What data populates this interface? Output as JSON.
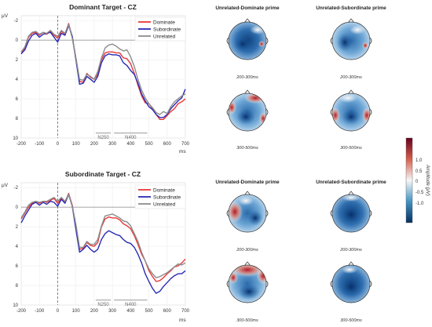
{
  "chart_data": [
    {
      "type": "line",
      "title": "Dominant Target - CZ",
      "ylabel": "μV",
      "xlabel": "ms",
      "ylim": [
        -2.5,
        10
      ],
      "y_inverted": true,
      "xlim": [
        -200,
        700
      ],
      "xticks": [
        "-200",
        "-100",
        "0",
        "100",
        "200",
        "300",
        "400",
        "500",
        "600",
        "700"
      ],
      "yticks": [
        "-2",
        "0",
        "2",
        "4",
        "6",
        "8",
        "10"
      ],
      "grid": true,
      "legend_position": "top-right",
      "x": [
        -200,
        -180,
        -160,
        -140,
        -120,
        -100,
        -80,
        -60,
        -40,
        -20,
        0,
        20,
        40,
        60,
        80,
        100,
        120,
        140,
        160,
        180,
        200,
        220,
        240,
        260,
        280,
        300,
        320,
        340,
        360,
        380,
        400,
        420,
        440,
        460,
        480,
        500,
        520,
        540,
        560,
        580,
        600,
        620,
        640,
        660,
        680,
        700
      ],
      "series": [
        {
          "name": "Dominate",
          "color": "#e8393a",
          "values": [
            1.4,
            0.8,
            -0.3,
            -0.7,
            -0.8,
            -0.5,
            -0.8,
            -0.6,
            -0.9,
            -0.5,
            -0.2,
            -0.9,
            -0.6,
            -1.7,
            -0.3,
            2.0,
            4.2,
            4.3,
            3.4,
            3.8,
            4.0,
            3.5,
            2.0,
            1.3,
            1.2,
            1.2,
            1.3,
            1.3,
            1.8,
            1.9,
            2.4,
            3.4,
            4.6,
            5.7,
            6.4,
            6.5,
            7.0,
            7.6,
            8.1,
            8.1,
            7.7,
            7.3,
            7.0,
            6.5,
            6.3,
            6.0
          ]
        },
        {
          "name": "Subordinate",
          "color": "#2b2bb5",
          "values": [
            1.4,
            1.0,
            0.1,
            -0.5,
            -0.7,
            -0.3,
            -0.6,
            -0.7,
            -0.8,
            -0.3,
            0.2,
            -0.7,
            -0.5,
            -1.5,
            -0.4,
            2.0,
            4.5,
            4.4,
            3.7,
            4.0,
            4.3,
            3.7,
            2.3,
            1.6,
            1.4,
            1.5,
            1.5,
            1.6,
            2.3,
            2.6,
            3.1,
            3.5,
            4.4,
            5.5,
            6.2,
            6.8,
            7.1,
            7.6,
            7.9,
            7.9,
            7.6,
            7.0,
            6.6,
            6.2,
            5.9,
            5.0
          ]
        },
        {
          "name": "Unrelated",
          "color": "#8c8c8c",
          "values": [
            1.2,
            0.7,
            -0.4,
            -0.8,
            -0.9,
            -0.6,
            -0.8,
            -0.7,
            -1.0,
            -0.6,
            -0.4,
            -1.0,
            -0.7,
            -1.6,
            -0.2,
            1.8,
            4.0,
            4.1,
            3.5,
            3.7,
            4.0,
            3.2,
            1.8,
            0.8,
            0.5,
            0.4,
            0.6,
            0.9,
            1.1,
            1.0,
            1.7,
            2.7,
            4.0,
            5.1,
            5.9,
            6.5,
            6.9,
            7.4,
            7.6,
            7.3,
            7.5,
            6.8,
            6.3,
            6.0,
            5.7,
            5.5
          ]
        }
      ],
      "annotations": [
        {
          "text": "N250",
          "range": [
            200,
            300
          ]
        },
        {
          "text": "N400",
          "range": [
            300,
            500
          ]
        }
      ]
    },
    {
      "type": "line",
      "title": "Subordinate Target - CZ",
      "ylabel": "μV",
      "xlabel": "ms",
      "ylim": [
        -2.5,
        10
      ],
      "y_inverted": true,
      "xlim": [
        -200,
        700
      ],
      "xticks": [
        "-200",
        "-100",
        "0",
        "100",
        "200",
        "300",
        "400",
        "500",
        "600",
        "700"
      ],
      "yticks": [
        "-2",
        "0",
        "2",
        "4",
        "6",
        "8",
        "10"
      ],
      "grid": true,
      "legend_position": "top-right",
      "x": [
        -200,
        -180,
        -160,
        -140,
        -120,
        -100,
        -80,
        -60,
        -40,
        -20,
        0,
        20,
        40,
        60,
        80,
        100,
        120,
        140,
        160,
        180,
        200,
        220,
        240,
        260,
        280,
        300,
        320,
        340,
        360,
        380,
        400,
        420,
        440,
        460,
        480,
        500,
        520,
        540,
        560,
        580,
        600,
        620,
        640,
        660,
        680,
        700
      ],
      "series": [
        {
          "name": "Dominate",
          "color": "#e8393a",
          "values": [
            1.2,
            0.6,
            0.0,
            -0.4,
            -0.6,
            -0.4,
            -0.6,
            -0.5,
            -0.7,
            -0.9,
            -0.4,
            -0.9,
            -0.5,
            -1.4,
            -0.2,
            2.0,
            4.3,
            4.2,
            3.6,
            3.9,
            4.0,
            3.6,
            2.0,
            1.2,
            1.0,
            1.1,
            1.1,
            1.3,
            1.7,
            1.9,
            2.2,
            2.9,
            3.8,
            4.8,
            5.5,
            6.5,
            7.1,
            7.6,
            7.5,
            7.2,
            6.8,
            6.5,
            6.1,
            6.0,
            5.7,
            5.3
          ]
        },
        {
          "name": "Subordinate",
          "color": "#2b2bb5",
          "values": [
            1.6,
            0.9,
            0.3,
            -0.3,
            -0.5,
            -0.2,
            -0.5,
            -0.3,
            -0.6,
            -0.5,
            -0.1,
            -0.8,
            -0.4,
            -1.3,
            -0.1,
            2.3,
            4.6,
            4.3,
            3.9,
            4.3,
            4.6,
            4.3,
            3.3,
            2.7,
            2.4,
            2.6,
            2.8,
            2.9,
            3.3,
            3.6,
            3.7,
            4.1,
            4.8,
            5.7,
            6.8,
            7.6,
            8.3,
            8.8,
            8.6,
            8.1,
            7.7,
            7.3,
            7.0,
            6.8,
            6.8,
            6.5
          ]
        },
        {
          "name": "Unrelated",
          "color": "#8c8c8c",
          "values": [
            1.1,
            0.5,
            -0.2,
            -0.5,
            -0.6,
            -0.5,
            -0.6,
            -0.6,
            -0.8,
            -1.0,
            -0.6,
            -1.0,
            -0.6,
            -1.3,
            -0.1,
            1.8,
            4.1,
            4.1,
            3.5,
            3.8,
            3.8,
            3.3,
            1.9,
            0.9,
            0.8,
            0.7,
            0.9,
            1.1,
            1.4,
            1.5,
            1.9,
            2.7,
            3.5,
            4.6,
            5.5,
            6.3,
            6.8,
            7.2,
            7.1,
            6.9,
            6.7,
            6.4,
            6.1,
            5.8,
            5.9,
            5.7
          ]
        }
      ],
      "annotations": [
        {
          "text": "N250",
          "range": [
            200,
            300
          ]
        },
        {
          "text": "N400",
          "range": [
            300,
            500
          ]
        }
      ]
    },
    {
      "type": "heatmap",
      "panels": [
        {
          "title": "Unrelated-Dominate prime",
          "windows": [
            {
              "label": "200-300ms",
              "pattern": "deep-blue-center-left"
            },
            {
              "label": "300-500ms",
              "pattern": "blue-center-red-frontal-edges"
            }
          ]
        },
        {
          "title": "Unrelated-Subordinate prime",
          "windows": [
            {
              "label": "200-300ms",
              "pattern": "blue-center-small-red-right"
            },
            {
              "label": "300-500ms",
              "pattern": "blue-center-red-edges"
            }
          ]
        },
        {
          "title": "Unrelated-Dominate prime",
          "windows": [
            {
              "label": "200-300ms",
              "pattern": "mixed-red-left-blue-right"
            },
            {
              "label": "300-500ms",
              "pattern": "red-frontal-blue-posterior"
            }
          ]
        },
        {
          "title": "Unrelated-Subordinate prime",
          "windows": [
            {
              "label": "200-300ms",
              "pattern": "deep-blue-whole"
            },
            {
              "label": "300-500ms",
              "pattern": "deep-blue-whole"
            }
          ]
        }
      ]
    }
  ],
  "colorbar": {
    "label": "Amplitude (μV)",
    "ticks": [
      "1.0",
      "0.5",
      "0",
      "-0.5",
      "-1.0"
    ],
    "colors": [
      "#67001f",
      "#d6604d",
      "#f7f7f7",
      "#4393c3",
      "#053061"
    ]
  }
}
